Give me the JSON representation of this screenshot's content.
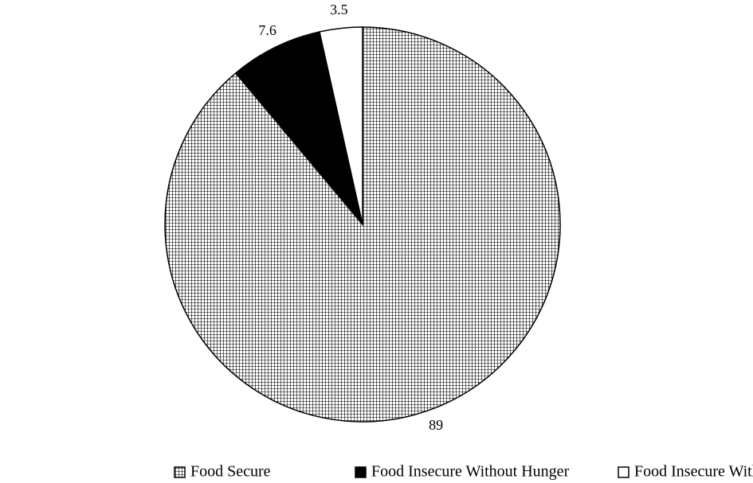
{
  "chart_data": {
    "type": "pie",
    "categories": [
      "Food Secure",
      "Food Insecure Without Hunger",
      "Food Insecure With Hunger"
    ],
    "values": [
      89,
      7.6,
      3.5
    ],
    "colors": [
      "#ffffff",
      "#000000",
      "#ffffff"
    ],
    "patterns": [
      "grid",
      "none",
      "none"
    ],
    "start_angle": 0,
    "direction": "clockwise",
    "legend": "bottom"
  }
}
